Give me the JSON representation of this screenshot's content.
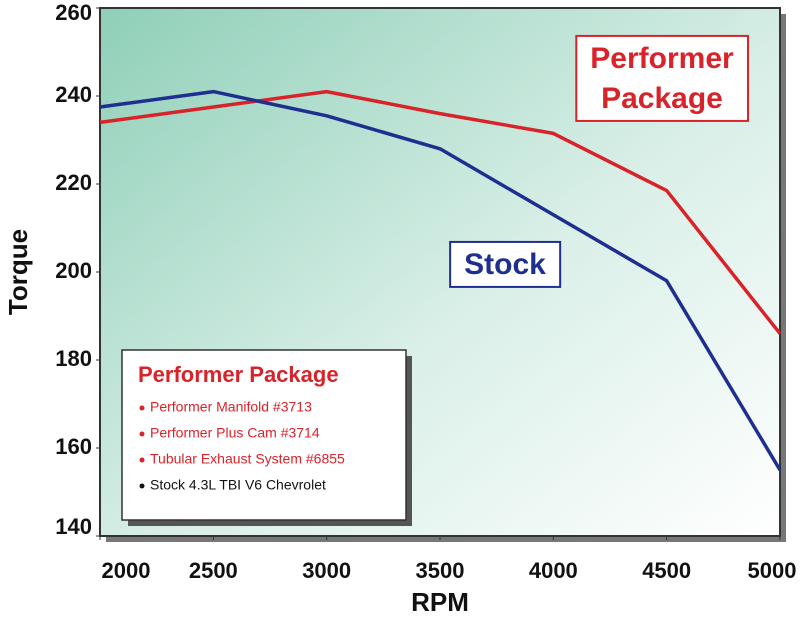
{
  "chart_data": {
    "type": "line",
    "x": [
      2000,
      2500,
      3000,
      3500,
      4000,
      4500,
      5000
    ],
    "series": [
      {
        "name": "Performer Package",
        "color": "#d8232a",
        "values": [
          234,
          237.5,
          241,
          236,
          231.5,
          218.5,
          186
        ]
      },
      {
        "name": "Stock",
        "color": "#1f2f8f",
        "values": [
          237.5,
          241,
          235.5,
          228,
          213,
          198,
          155
        ]
      }
    ],
    "xlim": [
      2000,
      5000
    ],
    "xticks": [
      2000,
      2500,
      3000,
      3500,
      4000,
      4500,
      5000
    ],
    "ylim": [
      140,
      260
    ],
    "yticks": [
      140,
      160,
      180,
      200,
      220,
      240,
      260
    ],
    "xlabel": "RPM",
    "ylabel": "Torque",
    "legend_box": {
      "title": "Performer Package",
      "items": [
        {
          "text": "Performer Manifold #3713",
          "color": "#d8232a"
        },
        {
          "text": "Performer Plus Cam #3714",
          "color": "#d8232a"
        },
        {
          "text": "Tubular Exhaust System #6855",
          "color": "#d8232a"
        },
        {
          "text": "Stock 4.3L TBI V6 Chevrolet",
          "color": "#111111"
        }
      ]
    }
  }
}
